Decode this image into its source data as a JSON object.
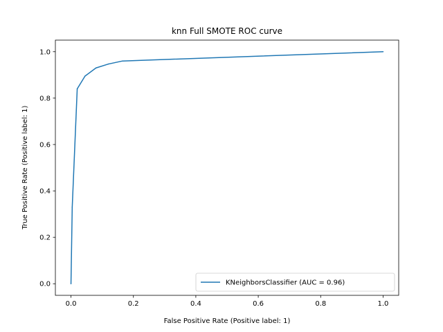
{
  "chart_data": {
    "type": "line",
    "title": "knn Full SMOTE ROC curve",
    "xlabel": "False Positive Rate (Positive label: 1)",
    "ylabel": "True Positive Rate (Positive label: 1)",
    "xlim": [
      -0.05,
      1.05
    ],
    "ylim": [
      -0.05,
      1.05
    ],
    "xticks": [
      "0.0",
      "0.2",
      "0.4",
      "0.6",
      "0.8",
      "1.0"
    ],
    "yticks": [
      "0.0",
      "0.2",
      "0.4",
      "0.6",
      "0.8",
      "1.0"
    ],
    "grid": false,
    "legend_position": "lower-right",
    "series": [
      {
        "name": "KNeighborsClassifier (AUC = 0.96)",
        "color": "#1f77b4",
        "x": [
          0.0,
          0.004,
          0.02,
          0.045,
          0.08,
          0.12,
          0.165,
          1.0
        ],
        "y": [
          0.0,
          0.33,
          0.84,
          0.895,
          0.93,
          0.947,
          0.96,
          1.0
        ]
      }
    ]
  }
}
